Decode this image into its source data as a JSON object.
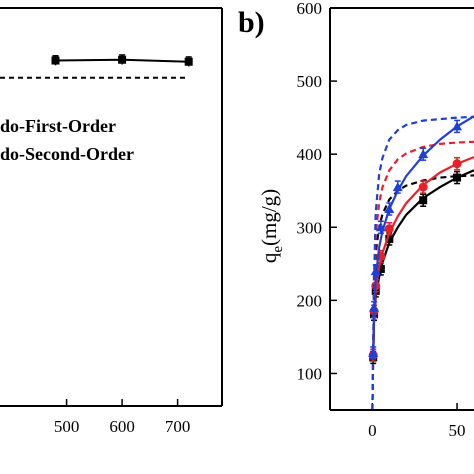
{
  "chart_data": [
    {
      "panel": "left (cropped)",
      "type": "line",
      "xlim": [
        380,
        780
      ],
      "ylim": [
        0,
        1
      ],
      "x_ticks": [
        500,
        600,
        700
      ],
      "x_tick_labels": [
        "500",
        "600",
        "700"
      ],
      "legend": [
        {
          "label": "do-First-Order",
          "style": "dashed"
        },
        {
          "label": "do-Second-Order",
          "style": "solid"
        }
      ],
      "series": [
        {
          "style": "solid+markers",
          "color": "#000000",
          "x": [
            480,
            600,
            720
          ],
          "y": [
            0.868,
            0.87,
            0.865
          ],
          "err": [
            0.012,
            0.012,
            0.012
          ]
        },
        {
          "style": "dashed",
          "color": "#000000",
          "x": [
            380,
            720
          ],
          "y": [
            0.825,
            0.825
          ]
        }
      ]
    },
    {
      "panel": "b)",
      "type": "scatter",
      "title": "b)",
      "ylabel_main": "q",
      "ylabel_sub": "e",
      "ylabel_rest": "(mg/g)",
      "xlim": [
        -25,
        60
      ],
      "ylim": [
        50,
        600
      ],
      "y_ticks": [
        100,
        200,
        300,
        400,
        500,
        600
      ],
      "y_tick_labels": [
        "100",
        "200",
        "300",
        "400",
        "500",
        "600"
      ],
      "x_ticks": [
        0,
        50
      ],
      "x_tick_labels": [
        "0",
        "50"
      ],
      "series": [
        {
          "color": "#000000",
          "marker": "square",
          "x": [
            0.5,
            1,
            2,
            5,
            10,
            30,
            50
          ],
          "y": [
            122,
            181,
            213,
            243,
            284,
            337,
            368
          ],
          "fit_solid": {
            "x": [
              0.5,
              1,
              2,
              4,
              6,
              10,
              15,
              20,
              30,
              40,
              50,
              60
            ],
            "y": [
              120,
              170,
              205,
              232,
              252,
              279,
              300,
              317,
              340,
              355,
              368,
              378
            ]
          },
          "fit_dashed": {
            "x": [
              0,
              1,
              2,
              4,
              6,
              10,
              15,
              20,
              30,
              40,
              50,
              60
            ],
            "y": [
              50,
              200,
              265,
              300,
              318,
              338,
              350,
              357,
              364,
              368,
              370,
              371
            ]
          }
        },
        {
          "color": "#e8202a",
          "marker": "circle",
          "x": [
            0.5,
            1,
            2,
            5,
            10,
            30,
            50
          ],
          "y": [
            125,
            185,
            220,
            260,
            298,
            355,
            387
          ],
          "fit_solid": {
            "x": [
              0.5,
              1,
              2,
              4,
              6,
              10,
              15,
              20,
              30,
              40,
              50,
              60
            ],
            "y": [
              123,
              175,
              213,
              245,
              265,
              292,
              315,
              333,
              358,
              375,
              387,
              396
            ]
          },
          "fit_dashed": {
            "x": [
              0,
              1,
              2,
              4,
              6,
              10,
              15,
              20,
              30,
              40,
              50,
              60
            ],
            "y": [
              50,
              215,
              290,
              333,
              355,
              378,
              393,
              401,
              410,
              414,
              416,
              417
            ]
          }
        },
        {
          "color": "#1f3fd6",
          "marker": "triangle",
          "x": [
            0.5,
            1,
            2,
            5,
            10,
            15,
            30,
            50
          ],
          "y": [
            128,
            190,
            240,
            300,
            325,
            355,
            400,
            438
          ],
          "fit_solid": {
            "x": [
              0.5,
              1,
              2,
              4,
              6,
              10,
              15,
              20,
              30,
              40,
              50,
              60
            ],
            "y": [
              126,
              182,
              230,
              272,
              295,
              325,
              350,
              370,
              398,
              420,
              438,
              452
            ]
          },
          "fit_dashed": {
            "x": [
              0,
              1,
              2,
              4,
              6,
              10,
              15,
              20,
              30,
              40,
              50,
              60
            ],
            "y": [
              50,
              225,
              320,
              372,
              395,
              420,
              433,
              440,
              446,
              448,
              450,
              451
            ]
          }
        }
      ]
    }
  ]
}
